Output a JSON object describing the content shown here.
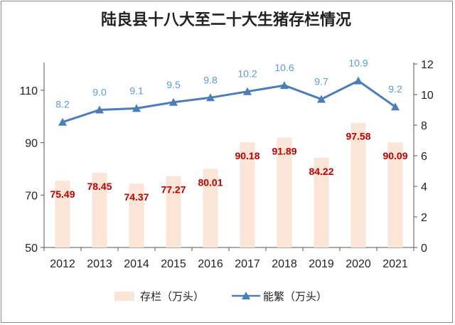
{
  "chart_data": {
    "title": "陆良县十八大至二十大生猪存栏情况",
    "categories": [
      "2012",
      "2013",
      "2014",
      "2015",
      "2016",
      "2017",
      "2018",
      "2019",
      "2020",
      "2021"
    ],
    "series": [
      {
        "name": "存栏（万头）",
        "type": "bar",
        "axis": "left",
        "color": "#fbe5d6",
        "label_color": "#c00000",
        "values": [
          75.49,
          78.45,
          74.37,
          77.27,
          80.01,
          90.18,
          91.89,
          84.22,
          97.58,
          90.09
        ],
        "labels": [
          "75.49",
          "78.45",
          "74.37",
          "77.27",
          "80.01",
          "90.18",
          "91.89",
          "84.22",
          "97.58",
          "90.09"
        ]
      },
      {
        "name": "能繁（万头）",
        "type": "line",
        "axis": "right",
        "color": "#4a7ebb",
        "label_color": "#5b9bd5",
        "marker": "triangle",
        "values": [
          8.2,
          9.0,
          9.1,
          9.5,
          9.8,
          10.2,
          10.6,
          9.7,
          10.9,
          9.2
        ],
        "labels": [
          "8.2",
          "9.0",
          "9.1",
          "9.5",
          "9.8",
          "10.2",
          "10.6",
          "9.7",
          "10.9",
          "9.2"
        ]
      }
    ],
    "y_left": {
      "ylim": [
        50,
        120
      ],
      "ticks": [
        "50",
        "70",
        "90",
        "110"
      ],
      "tick_values": [
        50,
        70,
        90,
        110
      ]
    },
    "y_right": {
      "ylim": [
        0,
        12
      ],
      "ticks": [
        "0",
        "2",
        "4",
        "6",
        "8",
        "10",
        "12"
      ],
      "tick_values": [
        0,
        2,
        4,
        6,
        8,
        10,
        12
      ]
    },
    "grid": false,
    "legend_position": "bottom"
  }
}
